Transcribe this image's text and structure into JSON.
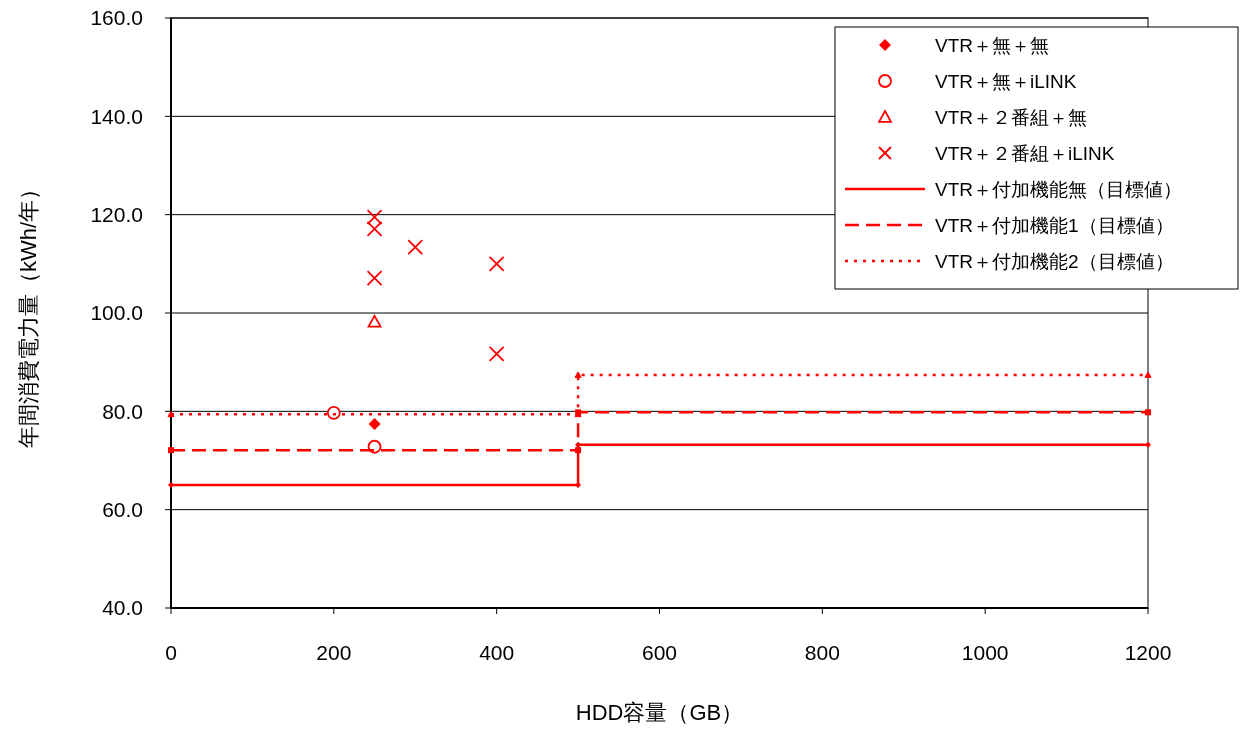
{
  "chart_data": {
    "type": "scatter",
    "xlabel": "HDD容量（GB）",
    "ylabel": "年間消費電力量（kWh/年）",
    "xlim": [
      0,
      1200
    ],
    "xticks": [
      0,
      200,
      400,
      600,
      800,
      1000,
      1200
    ],
    "ylim": [
      40,
      160
    ],
    "yticks": [
      {
        "value": 40,
        "label": "40.0"
      },
      {
        "value": 60,
        "label": "60.0"
      },
      {
        "value": 80,
        "label": "80.0"
      },
      {
        "value": 100,
        "label": "100.0"
      },
      {
        "value": 120,
        "label": "120.0"
      },
      {
        "value": 140,
        "label": "140.0"
      },
      {
        "value": 160,
        "label": "160.0"
      }
    ],
    "grid": "y",
    "legend": "top right",
    "series": [
      {
        "name": "VTR＋無＋無",
        "marker": "diamond",
        "color": "#ff0000",
        "x": [
          250
        ],
        "values": [
          77.4
        ]
      },
      {
        "name": "VTR＋無＋iLINK",
        "marker": "circle",
        "color": "#ff0000",
        "x": [
          200,
          250
        ],
        "values": [
          79.7,
          72.8
        ]
      },
      {
        "name": "VTR＋２番組＋無",
        "marker": "triangle",
        "color": "#ff0000",
        "x": [
          250
        ],
        "values": [
          98.2
        ]
      },
      {
        "name": "VTR＋２番組＋iLINK",
        "marker": "cross",
        "color": "#ff0000",
        "x": [
          250,
          250,
          250,
          300,
          400,
          400
        ],
        "values": [
          119.5,
          117.1,
          107.1,
          113.4,
          110.0,
          91.7
        ]
      },
      {
        "name": "VTR＋付加機能無（目標値）",
        "type": "line",
        "marker": "diamond",
        "line_style": "solid",
        "color": "#ff0000",
        "x": [
          0,
          500,
          500,
          1200
        ],
        "values": [
          65.0,
          65.0,
          73.2,
          73.2
        ]
      },
      {
        "name": "VTR＋付加機能1（目標値）",
        "type": "line",
        "marker": "square",
        "line_style": "dashed",
        "color": "#ff0000",
        "x": [
          0,
          500,
          500,
          1200
        ],
        "values": [
          72.1,
          72.1,
          79.8,
          79.8
        ]
      },
      {
        "name": "VTR＋付加機能2（目標値）",
        "type": "line",
        "marker": "triangle",
        "line_style": "dotted",
        "color": "#ff0000",
        "x": [
          0,
          500,
          500,
          1200
        ],
        "values": [
          79.4,
          79.4,
          87.4,
          87.4
        ]
      }
    ]
  }
}
